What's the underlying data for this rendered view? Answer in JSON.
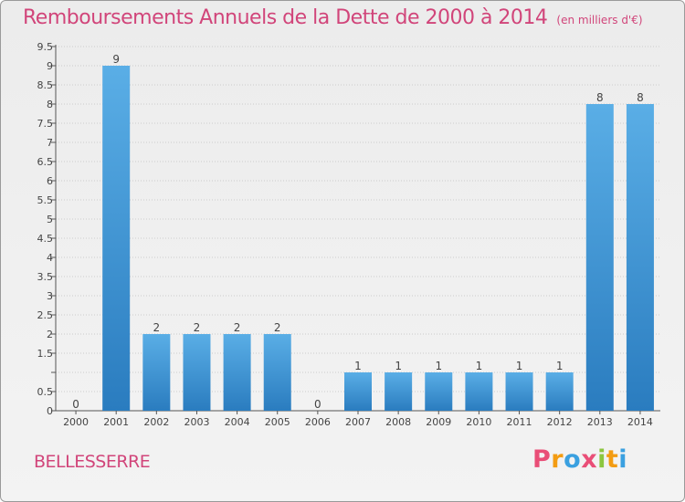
{
  "title": "Remboursements Annuels de la Dette de 2000 à 2014",
  "unit": "(en milliers d'€)",
  "town": "BELLESSERRE",
  "logo_letters": [
    "P",
    "r",
    "o",
    "x",
    "i",
    "t",
    "i"
  ],
  "logo_colors": [
    "#e94e77",
    "#f39c12",
    "#3aa0e0",
    "#e94e77",
    "#8cc63f",
    "#f39c12",
    "#3aa0e0"
  ],
  "colors": {
    "title": "#d1457a",
    "bar_light": "#5aaee6",
    "bar_dark": "#2a7cbf",
    "grid": "#cccccc"
  },
  "chart_data": {
    "type": "bar",
    "categories": [
      "2000",
      "2001",
      "2002",
      "2003",
      "2004",
      "2005",
      "2006",
      "2007",
      "2008",
      "2009",
      "2010",
      "2011",
      "2012",
      "2013",
      "2014"
    ],
    "values": [
      0,
      9,
      2,
      2,
      2,
      2,
      0,
      1,
      1,
      1,
      1,
      1,
      1,
      8,
      8
    ],
    "data_labels": [
      "0",
      "9",
      "2",
      "2",
      "2",
      "2",
      "0",
      "1",
      "1",
      "1",
      "1",
      "1",
      "1",
      "8",
      "8"
    ],
    "yticks": [
      0,
      0.5,
      1,
      1.5,
      2,
      2.5,
      3,
      3.5,
      4,
      4.5,
      5,
      5.5,
      6,
      6.5,
      7,
      7.5,
      8,
      8.5,
      9,
      9.5
    ],
    "ytick_labels": [
      "0",
      "0.5",
      "",
      "1.5",
      "2",
      "2.5",
      "3",
      "3.5",
      "4",
      "4.5",
      "5",
      "5.5",
      "6",
      "6.5",
      "7",
      "7.5",
      "8",
      "8.5",
      "9",
      "9.5"
    ],
    "ylim": [
      0,
      9.5
    ],
    "grid": "horizontal dotted"
  }
}
